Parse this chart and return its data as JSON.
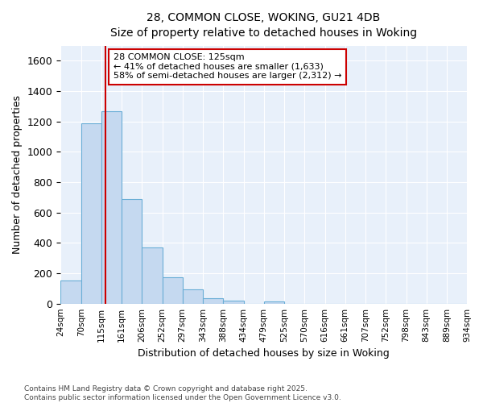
{
  "title": "28, COMMON CLOSE, WOKING, GU21 4DB",
  "subtitle": "Size of property relative to detached houses in Woking",
  "xlabel": "Distribution of detached houses by size in Woking",
  "ylabel": "Number of detached properties",
  "bar_color": "#c5d9f0",
  "bar_edge_color": "#6aaed6",
  "bg_color": "#e8f0fa",
  "grid_color": "#ffffff",
  "fig_bg_color": "#ffffff",
  "red_line_x": 125,
  "annotation_line1": "28 COMMON CLOSE: 125sqm",
  "annotation_line2": "← 41% of detached houses are smaller (1,633)",
  "annotation_line3": "58% of semi-detached houses are larger (2,312) →",
  "annotation_box_color": "#ffffff",
  "annotation_box_edge": "#cc0000",
  "bin_edges": [
    24,
    70,
    115,
    161,
    206,
    252,
    297,
    343,
    388,
    434,
    479,
    525,
    570,
    616,
    661,
    707,
    752,
    798,
    843,
    889,
    934
  ],
  "hist_heights": [
    150,
    1190,
    1270,
    690,
    370,
    175,
    95,
    35,
    20,
    0,
    15,
    0,
    0,
    0,
    0,
    0,
    0,
    0,
    0,
    0
  ],
  "ylim": [
    0,
    1700
  ],
  "yticks": [
    0,
    200,
    400,
    600,
    800,
    1000,
    1200,
    1400,
    1600
  ],
  "tick_labels": [
    "24sqm",
    "70sqm",
    "115sqm",
    "161sqm",
    "206sqm",
    "252sqm",
    "297sqm",
    "343sqm",
    "388sqm",
    "434sqm",
    "479sqm",
    "525sqm",
    "570sqm",
    "616sqm",
    "661sqm",
    "707sqm",
    "752sqm",
    "798sqm",
    "843sqm",
    "889sqm",
    "934sqm"
  ],
  "footer1": "Contains HM Land Registry data © Crown copyright and database right 2025.",
  "footer2": "Contains public sector information licensed under the Open Government Licence v3.0."
}
